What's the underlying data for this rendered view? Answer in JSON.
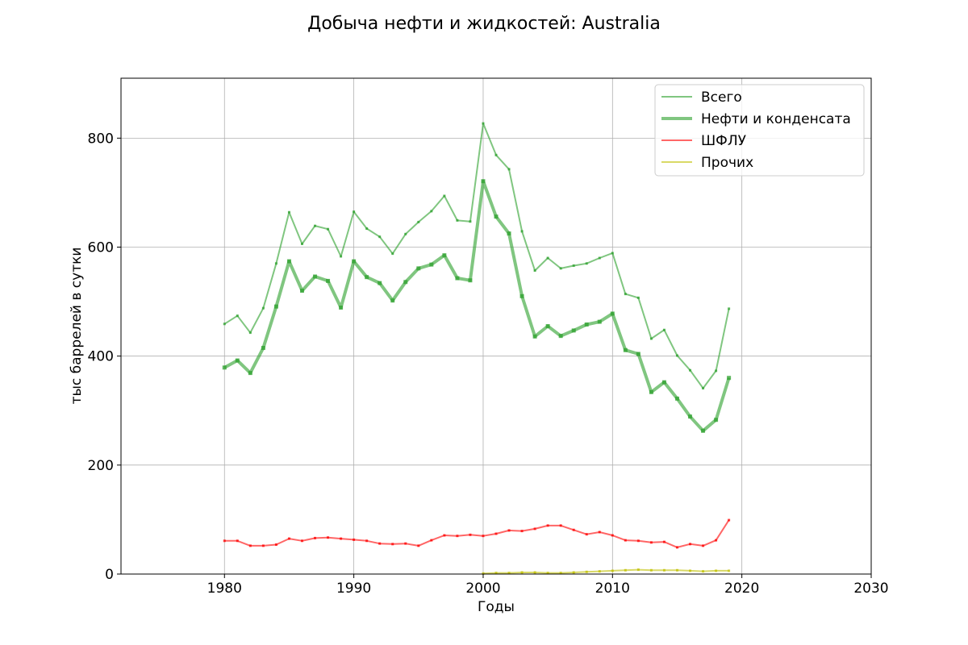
{
  "chart_data": {
    "type": "line",
    "title": "Добыча нефти и жидкостей: Australia",
    "xlabel": "Годы",
    "ylabel": "тыс баррелей в сутки",
    "xlim": [
      1972,
      2030
    ],
    "ylim": [
      0,
      910
    ],
    "x_ticks": [
      1980,
      1990,
      2000,
      2010,
      2020,
      2030
    ],
    "y_ticks": [
      0,
      200,
      400,
      600,
      800
    ],
    "grid": true,
    "legend_position": "top-right",
    "series": [
      {
        "name": "Всего",
        "color": "#2ca02c",
        "x": [
          1980,
          1981,
          1982,
          1983,
          1984,
          1985,
          1986,
          1987,
          1988,
          1989,
          1990,
          1991,
          1992,
          1993,
          1994,
          1995,
          1996,
          1997,
          1998,
          1999,
          2000,
          2001,
          2002,
          2003,
          2004,
          2005,
          2006,
          2007,
          2008,
          2009,
          2010,
          2011,
          2012,
          2013,
          2014,
          2015,
          2016,
          2017,
          2018,
          2019
        ],
        "values": [
          459,
          474,
          443,
          488,
          570,
          664,
          606,
          639,
          633,
          583,
          665,
          634,
          619,
          588,
          624,
          646,
          666,
          694,
          649,
          647,
          827,
          769,
          743,
          629,
          557,
          580,
          561,
          566,
          570,
          580,
          589,
          514,
          507,
          432,
          448,
          401,
          374,
          341,
          373,
          487
        ]
      },
      {
        "name": "Нефти и конденсата",
        "color": "#2ca02c",
        "x": [
          1980,
          1981,
          1982,
          1983,
          1984,
          1985,
          1986,
          1987,
          1988,
          1989,
          1990,
          1991,
          1992,
          1993,
          1994,
          1995,
          1996,
          1997,
          1998,
          1999,
          2000,
          2001,
          2002,
          2003,
          2004,
          2005,
          2006,
          2007,
          2008,
          2009,
          2010,
          2011,
          2012,
          2013,
          2014,
          2015,
          2016,
          2017,
          2018,
          2019
        ],
        "values": [
          379,
          392,
          369,
          415,
          491,
          574,
          520,
          546,
          538,
          489,
          574,
          545,
          534,
          502,
          536,
          561,
          568,
          585,
          543,
          539,
          721,
          656,
          625,
          510,
          436,
          455,
          437,
          447,
          458,
          463,
          478,
          411,
          404,
          334,
          352,
          322,
          289,
          263,
          283,
          360
        ]
      },
      {
        "name": "ШФЛУ",
        "color": "#ff0000",
        "x": [
          1980,
          1981,
          1982,
          1983,
          1984,
          1985,
          1986,
          1987,
          1988,
          1989,
          1990,
          1991,
          1992,
          1993,
          1994,
          1995,
          1996,
          1997,
          1998,
          1999,
          2000,
          2001,
          2002,
          2003,
          2004,
          2005,
          2006,
          2007,
          2008,
          2009,
          2010,
          2011,
          2012,
          2013,
          2014,
          2015,
          2016,
          2017,
          2018,
          2019
        ],
        "values": [
          61,
          61,
          52,
          52,
          54,
          65,
          61,
          66,
          67,
          65,
          63,
          61,
          56,
          55,
          56,
          52,
          62,
          71,
          70,
          72,
          70,
          74,
          80,
          79,
          83,
          89,
          89,
          81,
          73,
          77,
          71,
          62,
          61,
          58,
          59,
          49,
          55,
          52,
          62,
          99
        ]
      },
      {
        "name": "Прочих",
        "color": "#bfbf00",
        "x": [
          2000,
          2001,
          2002,
          2003,
          2004,
          2005,
          2006,
          2007,
          2008,
          2009,
          2010,
          2011,
          2012,
          2013,
          2014,
          2015,
          2016,
          2017,
          2018,
          2019
        ],
        "values": [
          1,
          2,
          2,
          3,
          3,
          2,
          2,
          3,
          4,
          5,
          6,
          7,
          8,
          7,
          7,
          7,
          6,
          5,
          6,
          6
        ]
      }
    ]
  }
}
